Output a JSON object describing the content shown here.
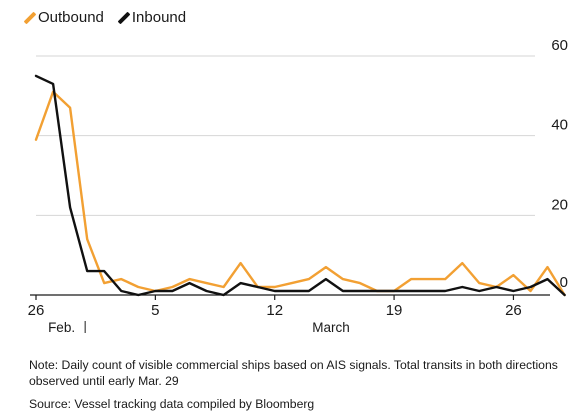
{
  "legend": [
    {
      "name": "Outbound",
      "color": "#f2a033"
    },
    {
      "name": "Inbound",
      "color": "#111111"
    }
  ],
  "note": "Note: Daily count of visible commercial ships based on AIS signals. Total transits in both directions observed until early Mar. 29",
  "source": "Source: Vessel tracking data compiled by Bloomberg",
  "chart_data": {
    "type": "line",
    "title": "",
    "xlabel": "",
    "ylabel": "",
    "x_ticks": [
      "26",
      "5",
      "12",
      "19",
      "26"
    ],
    "x_tick_days": [
      0,
      7,
      14,
      21,
      28
    ],
    "month_labels": [
      {
        "label": "Feb.",
        "day": 1.5
      },
      {
        "label": "March",
        "day": 17.3
      }
    ],
    "month_divider_day": 3,
    "y_ticks": [
      0,
      20,
      40,
      60
    ],
    "ylim": [
      0,
      60
    ],
    "xlim": [
      0,
      31.2
    ],
    "grid": true,
    "x": [
      "Feb 26",
      "Feb 27",
      "Feb 28",
      "Mar 1",
      "Mar 2",
      "Mar 3",
      "Mar 4",
      "Mar 5",
      "Mar 6",
      "Mar 7",
      "Mar 8",
      "Mar 9",
      "Mar 10",
      "Mar 11",
      "Mar 12",
      "Mar 13",
      "Mar 14",
      "Mar 15",
      "Mar 16",
      "Mar 17",
      "Mar 18",
      "Mar 19",
      "Mar 20",
      "Mar 21",
      "Mar 22",
      "Mar 23",
      "Mar 24",
      "Mar 25",
      "Mar 26",
      "Mar 27",
      "Mar 28",
      "Mar 29"
    ],
    "series": [
      {
        "name": "Outbound",
        "color": "#f2a033",
        "values": [
          39,
          51,
          47,
          14,
          3,
          4,
          2,
          1,
          2,
          4,
          3,
          2,
          8,
          2,
          2,
          3,
          4,
          7,
          4,
          3,
          1,
          1,
          4,
          4,
          4,
          8,
          3,
          2,
          5,
          1,
          7,
          0
        ]
      },
      {
        "name": "Inbound",
        "color": "#111111",
        "values": [
          55,
          53,
          22,
          6,
          6,
          1,
          0,
          1,
          1,
          3,
          1,
          0,
          3,
          2,
          1,
          1,
          1,
          4,
          1,
          1,
          1,
          1,
          1,
          1,
          1,
          2,
          1,
          2,
          1,
          2,
          4,
          0
        ]
      }
    ]
  }
}
